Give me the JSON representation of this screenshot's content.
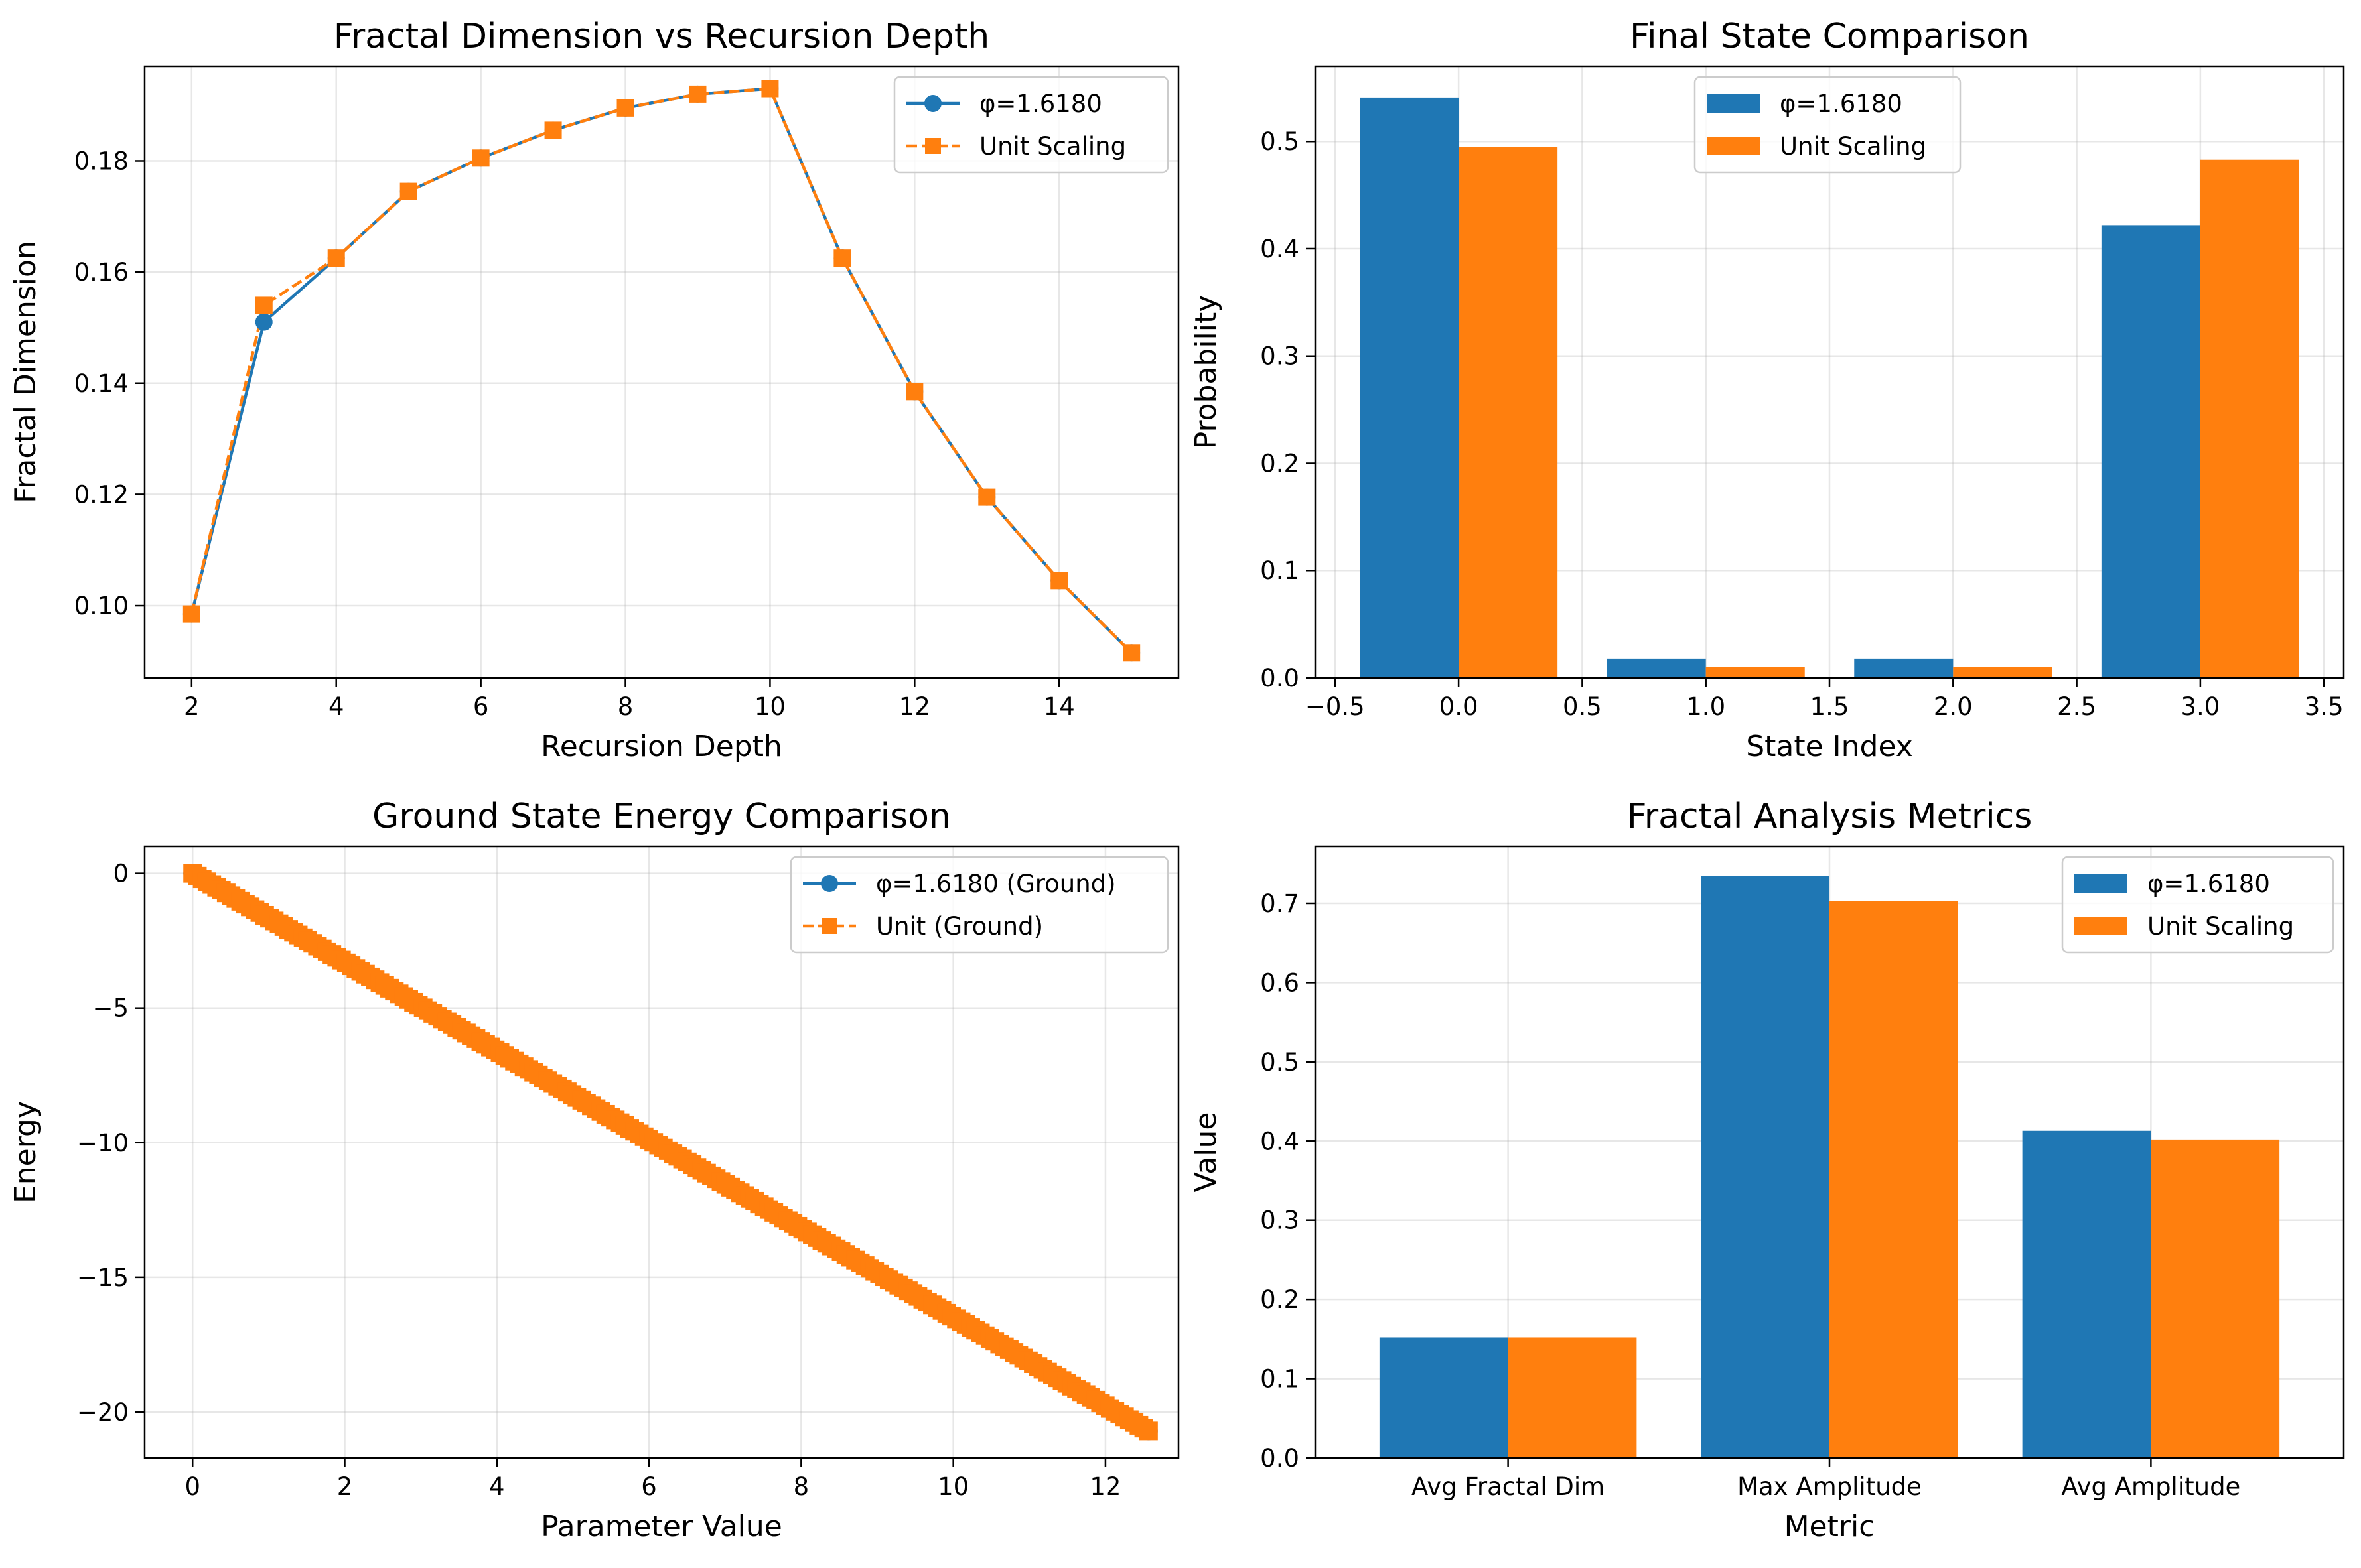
{
  "colors": {
    "blue": "#1f77b4",
    "orange": "#ff7f0e",
    "grid": "#b0b0b0"
  },
  "chart_data": [
    {
      "type": "line",
      "title": "Fractal Dimension vs Recursion Depth",
      "xlabel": "Recursion Depth",
      "ylabel": "Fractal Dimension",
      "xlim": [
        1.35,
        15.65
      ],
      "ylim": [
        0.087,
        0.197
      ],
      "xticks": [
        2,
        4,
        6,
        8,
        10,
        12,
        14
      ],
      "yticks": [
        0.1,
        0.12,
        0.14,
        0.16,
        0.18
      ],
      "ytick_labels": [
        "0.10",
        "0.12",
        "0.14",
        "0.16",
        "0.18"
      ],
      "grid": true,
      "legend_position": "upper-right",
      "x": [
        2,
        3,
        4,
        5,
        6,
        7,
        8,
        9,
        10,
        11,
        12,
        13,
        14,
        15
      ],
      "series": [
        {
          "name": "φ=1.6180",
          "color": "#1f77b4",
          "marker": "circle",
          "linestyle": "solid",
          "values": [
            0.0985,
            0.151,
            0.1625,
            0.1745,
            0.1805,
            0.1855,
            0.1895,
            0.192,
            0.193,
            0.1625,
            0.1385,
            0.1195,
            0.1045,
            0.0915
          ]
        },
        {
          "name": "Unit Scaling",
          "color": "#ff7f0e",
          "marker": "square",
          "linestyle": "dashed",
          "values": [
            0.0985,
            0.154,
            0.1625,
            0.1745,
            0.1805,
            0.1855,
            0.1895,
            0.192,
            0.193,
            0.1625,
            0.1385,
            0.1195,
            0.1045,
            0.0915
          ]
        }
      ]
    },
    {
      "type": "bar",
      "title": "Final State Comparison",
      "xlabel": "State Index",
      "ylabel": "Probability",
      "xlim": [
        -0.58,
        3.58
      ],
      "ylim": [
        0,
        0.57
      ],
      "xticks": [
        -0.5,
        0.0,
        0.5,
        1.0,
        1.5,
        2.0,
        2.5,
        3.0,
        3.5
      ],
      "xtick_labels": [
        "−0.5",
        "0.0",
        "0.5",
        "1.0",
        "1.5",
        "2.0",
        "2.5",
        "3.0",
        "3.5"
      ],
      "yticks": [
        0.0,
        0.1,
        0.2,
        0.3,
        0.4,
        0.5
      ],
      "ytick_labels": [
        "0.0",
        "0.1",
        "0.2",
        "0.3",
        "0.4",
        "0.5"
      ],
      "grid": true,
      "legend_position": "upper-center",
      "categories": [
        0,
        1,
        2,
        3
      ],
      "bar_width": 0.4,
      "series": [
        {
          "name": "φ=1.6180",
          "color": "#1f77b4",
          "values": [
            0.541,
            0.018,
            0.018,
            0.422
          ]
        },
        {
          "name": "Unit Scaling",
          "color": "#ff7f0e",
          "values": [
            0.495,
            0.01,
            0.01,
            0.483
          ]
        }
      ]
    },
    {
      "type": "line",
      "title": "Ground State Energy Comparison",
      "xlabel": "Parameter Value",
      "ylabel": "Energy",
      "xlim": [
        -0.63,
        12.96
      ],
      "ylim": [
        -21.7,
        1.0
      ],
      "xticks": [
        0,
        2,
        4,
        6,
        8,
        10,
        12
      ],
      "yticks": [
        0,
        -5,
        -10,
        -15,
        -20
      ],
      "ytick_labels": [
        "0",
        "−5",
        "−10",
        "−15",
        "−20"
      ],
      "grid": true,
      "legend_position": "upper-right",
      "x_range": [
        0,
        12.566
      ],
      "point_count": 200,
      "series": [
        {
          "name": "φ=1.6180 (Ground)",
          "color": "#1f77b4",
          "marker": "circle",
          "linestyle": "solid",
          "y_range": [
            0,
            -20.7
          ]
        },
        {
          "name": "Unit (Ground)",
          "color": "#ff7f0e",
          "marker": "square",
          "linestyle": "dashed",
          "y_range": [
            0,
            -20.7
          ]
        }
      ]
    },
    {
      "type": "bar",
      "title": "Fractal Analysis Metrics",
      "xlabel": "Metric",
      "ylabel": "Value",
      "ylim": [
        0,
        0.772
      ],
      "yticks": [
        0.0,
        0.1,
        0.2,
        0.3,
        0.4,
        0.5,
        0.6,
        0.7
      ],
      "ytick_labels": [
        "0.0",
        "0.1",
        "0.2",
        "0.3",
        "0.4",
        "0.5",
        "0.6",
        "0.7"
      ],
      "grid": true,
      "legend_position": "upper-right",
      "categories": [
        "Avg Fractal Dim",
        "Max Amplitude",
        "Avg Amplitude"
      ],
      "bar_width": 0.4,
      "series": [
        {
          "name": "φ=1.6180",
          "color": "#1f77b4",
          "values": [
            0.152,
            0.735,
            0.413
          ]
        },
        {
          "name": "Unit Scaling",
          "color": "#ff7f0e",
          "values": [
            0.152,
            0.703,
            0.402
          ]
        }
      ]
    }
  ]
}
